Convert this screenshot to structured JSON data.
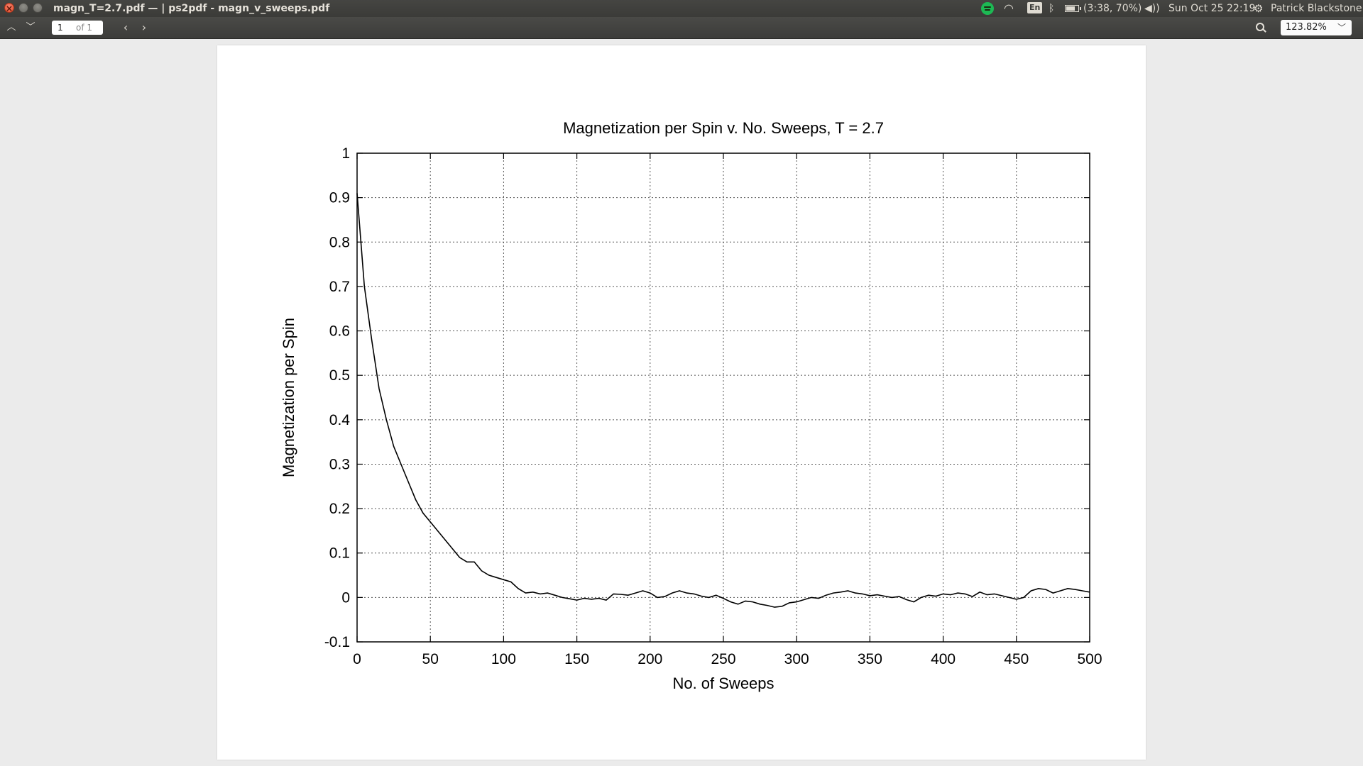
{
  "window": {
    "title": "magn_T=2.7.pdf — | ps2pdf - magn_v_sweeps.pdf"
  },
  "panel": {
    "keyboard": "En",
    "battery": "(3:38, 70%)",
    "clock": "Sun Oct 25 22:19",
    "user": "Patrick Blackstone",
    "icons": [
      "spotify-icon",
      "wifi-icon",
      "bluetooth-icon",
      "battery-icon",
      "volume-icon",
      "gear-icon"
    ]
  },
  "toolbar": {
    "page_current": "1",
    "page_total": "of 1",
    "zoom": "123.82%"
  },
  "chart_data": {
    "type": "line",
    "title": "Magnetization per Spin v. No. Sweeps, T = 2.7",
    "xlabel": "No. of Sweeps",
    "ylabel": "Magnetization per Spin",
    "xlim": [
      0,
      500
    ],
    "ylim": [
      -0.1,
      1
    ],
    "xticks": [
      "0",
      "50",
      "100",
      "150",
      "200",
      "250",
      "300",
      "350",
      "400",
      "450",
      "500"
    ],
    "yticks": [
      "-0.1",
      "0",
      "0.1",
      "0.2",
      "0.3",
      "0.4",
      "0.5",
      "0.6",
      "0.7",
      "0.8",
      "0.9",
      "1"
    ],
    "grid": true,
    "grid_style": "dotted",
    "line_color": "#000000",
    "series": [
      {
        "x": [
          0,
          5,
          10,
          15,
          20,
          25,
          30,
          35,
          40,
          45,
          50,
          55,
          60,
          65,
          70,
          75,
          80,
          85,
          90,
          95,
          100,
          105,
          110,
          115,
          120,
          125,
          130,
          135,
          140,
          145,
          150,
          155,
          160,
          165,
          170,
          175,
          180,
          185,
          190,
          195,
          200,
          205,
          210,
          215,
          220,
          225,
          230,
          235,
          240,
          245,
          250,
          255,
          260,
          265,
          270,
          275,
          280,
          285,
          290,
          295,
          300,
          305,
          310,
          315,
          320,
          325,
          330,
          335,
          340,
          345,
          350,
          355,
          360,
          365,
          370,
          375,
          380,
          385,
          390,
          395,
          400,
          405,
          410,
          415,
          420,
          425,
          430,
          435,
          440,
          445,
          450,
          455,
          460,
          465,
          470,
          475,
          480,
          485,
          490,
          495,
          500
        ],
        "values": [
          0.91,
          0.7,
          0.58,
          0.47,
          0.4,
          0.34,
          0.3,
          0.26,
          0.22,
          0.19,
          0.17,
          0.15,
          0.13,
          0.11,
          0.09,
          0.08,
          0.08,
          0.06,
          0.05,
          0.045,
          0.04,
          0.035,
          0.02,
          0.01,
          0.012,
          0.008,
          0.01,
          0.005,
          0.0,
          -0.003,
          -0.006,
          -0.002,
          -0.004,
          -0.002,
          -0.006,
          0.008,
          0.007,
          0.005,
          0.01,
          0.015,
          0.01,
          0.0,
          0.002,
          0.01,
          0.015,
          0.01,
          0.008,
          0.003,
          0.0,
          0.005,
          -0.002,
          -0.01,
          -0.015,
          -0.008,
          -0.01,
          -0.015,
          -0.018,
          -0.022,
          -0.02,
          -0.012,
          -0.01,
          -0.005,
          0.0,
          -0.002,
          0.005,
          0.01,
          0.012,
          0.015,
          0.01,
          0.008,
          0.004,
          0.006,
          0.003,
          0.0,
          0.002,
          -0.005,
          -0.01,
          0.0,
          0.005,
          0.003,
          0.008,
          0.006,
          0.01,
          0.008,
          0.002,
          0.012,
          0.006,
          0.008,
          0.004,
          0.0,
          -0.004,
          0.0,
          0.015,
          0.02,
          0.018,
          0.01,
          0.015,
          0.02,
          0.018,
          0.015,
          0.012
        ]
      }
    ]
  }
}
